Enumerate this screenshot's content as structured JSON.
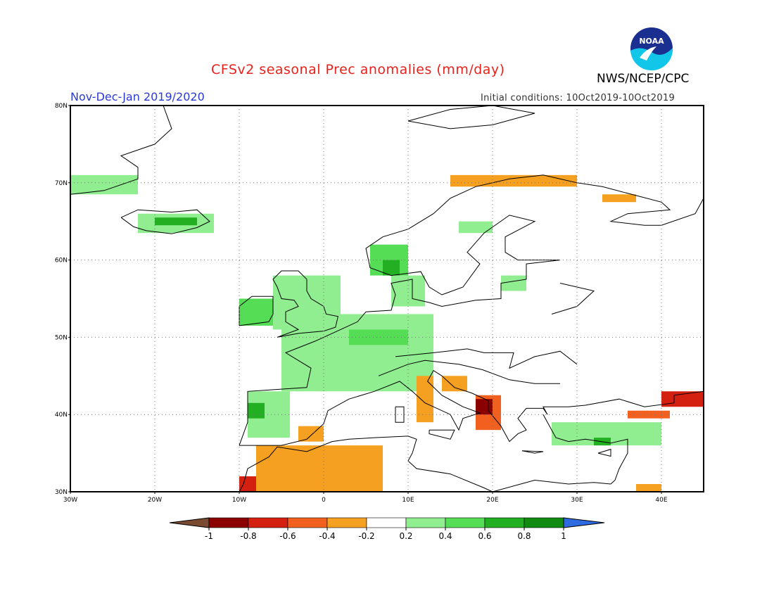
{
  "header": {
    "title": "CFSv2 seasonal Prec anomalies (mm/day)",
    "org": "NWS/NCEP/CPC",
    "period": "Nov-Dec-Jan 2019/2020",
    "initial_conditions": "Initial conditions: 10Oct2019-10Oct2019",
    "logo_text": "NOAA"
  },
  "map": {
    "lon_range": [
      -30,
      45
    ],
    "lat_range": [
      30,
      80
    ],
    "lat_labels": [
      "30N",
      "40N",
      "50N",
      "60N",
      "70N",
      "80N"
    ],
    "lon_labels": [
      "30W",
      "20W",
      "10W",
      "0",
      "10E",
      "20E",
      "30E",
      "40E"
    ],
    "grid": true
  },
  "colorbar": {
    "labels": [
      "-1",
      "-0.8",
      "-0.6",
      "-0.4",
      "-0.2",
      "0.2",
      "0.4",
      "0.6",
      "0.8",
      "1"
    ],
    "colors": [
      "#8b0000",
      "#d42010",
      "#f26020",
      "#f5a020",
      "#ffffff",
      "#90ee90",
      "#55dd55",
      "#22b022",
      "#118b11"
    ],
    "under_color": "#7a4a32",
    "over_color": "#2f6be0"
  },
  "chart_data": {
    "type": "heatmap",
    "title": "CFSv2 seasonal Prec anomalies (mm/day)",
    "subtitle": "Nov-Dec-Jan 2019/2020",
    "units": "mm/day",
    "levels": [
      -1,
      -0.8,
      -0.6,
      -0.4,
      -0.2,
      0.2,
      0.4,
      0.6,
      0.8,
      1
    ],
    "regions": [
      {
        "name": "Scandinavia west coast",
        "lon": [
          5.5,
          10
        ],
        "lat": [
          58,
          62
        ],
        "value": 0.5
      },
      {
        "name": "Norway south tip",
        "lon": [
          7,
          9
        ],
        "lat": [
          58,
          60
        ],
        "value": 0.7
      },
      {
        "name": "British Isles",
        "lon": [
          -6,
          2
        ],
        "lat": [
          51,
          58
        ],
        "value": 0.3
      },
      {
        "name": "Ireland",
        "lon": [
          -10,
          -6
        ],
        "lat": [
          51.5,
          55
        ],
        "value": 0.5
      },
      {
        "name": "France Benelux Germany",
        "lon": [
          -5,
          13
        ],
        "lat": [
          43,
          53
        ],
        "value": 0.3
      },
      {
        "name": "Central Europe core",
        "lon": [
          3,
          10
        ],
        "lat": [
          49,
          51
        ],
        "value": 0.45
      },
      {
        "name": "Denmark",
        "lon": [
          8,
          12
        ],
        "lat": [
          54,
          58
        ],
        "value": 0.3
      },
      {
        "name": "Iberia west",
        "lon": [
          -9,
          -4
        ],
        "lat": [
          37,
          43
        ],
        "value": 0.3
      },
      {
        "name": "Portugal north",
        "lon": [
          -9,
          -7
        ],
        "lat": [
          39.5,
          41.5
        ],
        "value": 0.6
      },
      {
        "name": "Turkey",
        "lon": [
          27,
          40
        ],
        "lat": [
          36,
          39
        ],
        "value": 0.3
      },
      {
        "name": "Turkey south coast",
        "lon": [
          32,
          34
        ],
        "lat": [
          36,
          37
        ],
        "value": 0.65
      },
      {
        "name": "Iceland",
        "lon": [
          -22,
          -13
        ],
        "lat": [
          63.5,
          66
        ],
        "value": 0.35
      },
      {
        "name": "Iceland interior",
        "lon": [
          -20,
          -15
        ],
        "lat": [
          64.5,
          65.5
        ],
        "value": 0.6
      },
      {
        "name": "Greenland SE",
        "lon": [
          -30,
          -22
        ],
        "lat": [
          68.5,
          71
        ],
        "value": 0.35
      },
      {
        "name": "Sweden central",
        "lon": [
          16,
          20
        ],
        "lat": [
          63.5,
          65
        ],
        "value": 0.25
      },
      {
        "name": "Baltic",
        "lon": [
          21,
          24
        ],
        "lat": [
          56,
          58
        ],
        "value": 0.25
      },
      {
        "name": "Norway north coast",
        "lon": [
          15,
          30
        ],
        "lat": [
          69.5,
          71
        ],
        "value": -0.3
      },
      {
        "name": "Kola peninsula",
        "lon": [
          33,
          37
        ],
        "lat": [
          67.5,
          68.5
        ],
        "value": -0.3
      },
      {
        "name": "Italy west coast",
        "lon": [
          11,
          13
        ],
        "lat": [
          39,
          45
        ],
        "value": -0.3
      },
      {
        "name": "Adriatic",
        "lon": [
          14,
          17
        ],
        "lat": [
          43,
          45
        ],
        "value": -0.3
      },
      {
        "name": "Albania Greece coast",
        "lon": [
          18,
          21
        ],
        "lat": [
          38,
          42.5
        ],
        "value": -0.6
      },
      {
        "name": "Balkan core",
        "lon": [
          18,
          20
        ],
        "lat": [
          40,
          42
        ],
        "value": -0.9
      },
      {
        "name": "Morocco Algeria",
        "lon": [
          -8,
          7
        ],
        "lat": [
          30,
          36
        ],
        "value": -0.3
      },
      {
        "name": "Morocco SW",
        "lon": [
          -10,
          -8
        ],
        "lat": [
          30,
          32
        ],
        "value": -0.7
      },
      {
        "name": "Spain SE",
        "lon": [
          -3,
          0
        ],
        "lat": [
          36.5,
          38.5
        ],
        "value": -0.35
      },
      {
        "name": "Georgia Caucasus",
        "lon": [
          40,
          45
        ],
        "lat": [
          41,
          43
        ],
        "value": -0.8
      },
      {
        "name": "East Turkey",
        "lon": [
          36,
          41
        ],
        "lat": [
          39.5,
          40.5
        ],
        "value": -0.55
      },
      {
        "name": "Middle East south",
        "lon": [
          37,
          40
        ],
        "lat": [
          30,
          31
        ],
        "value": -0.3
      }
    ]
  }
}
